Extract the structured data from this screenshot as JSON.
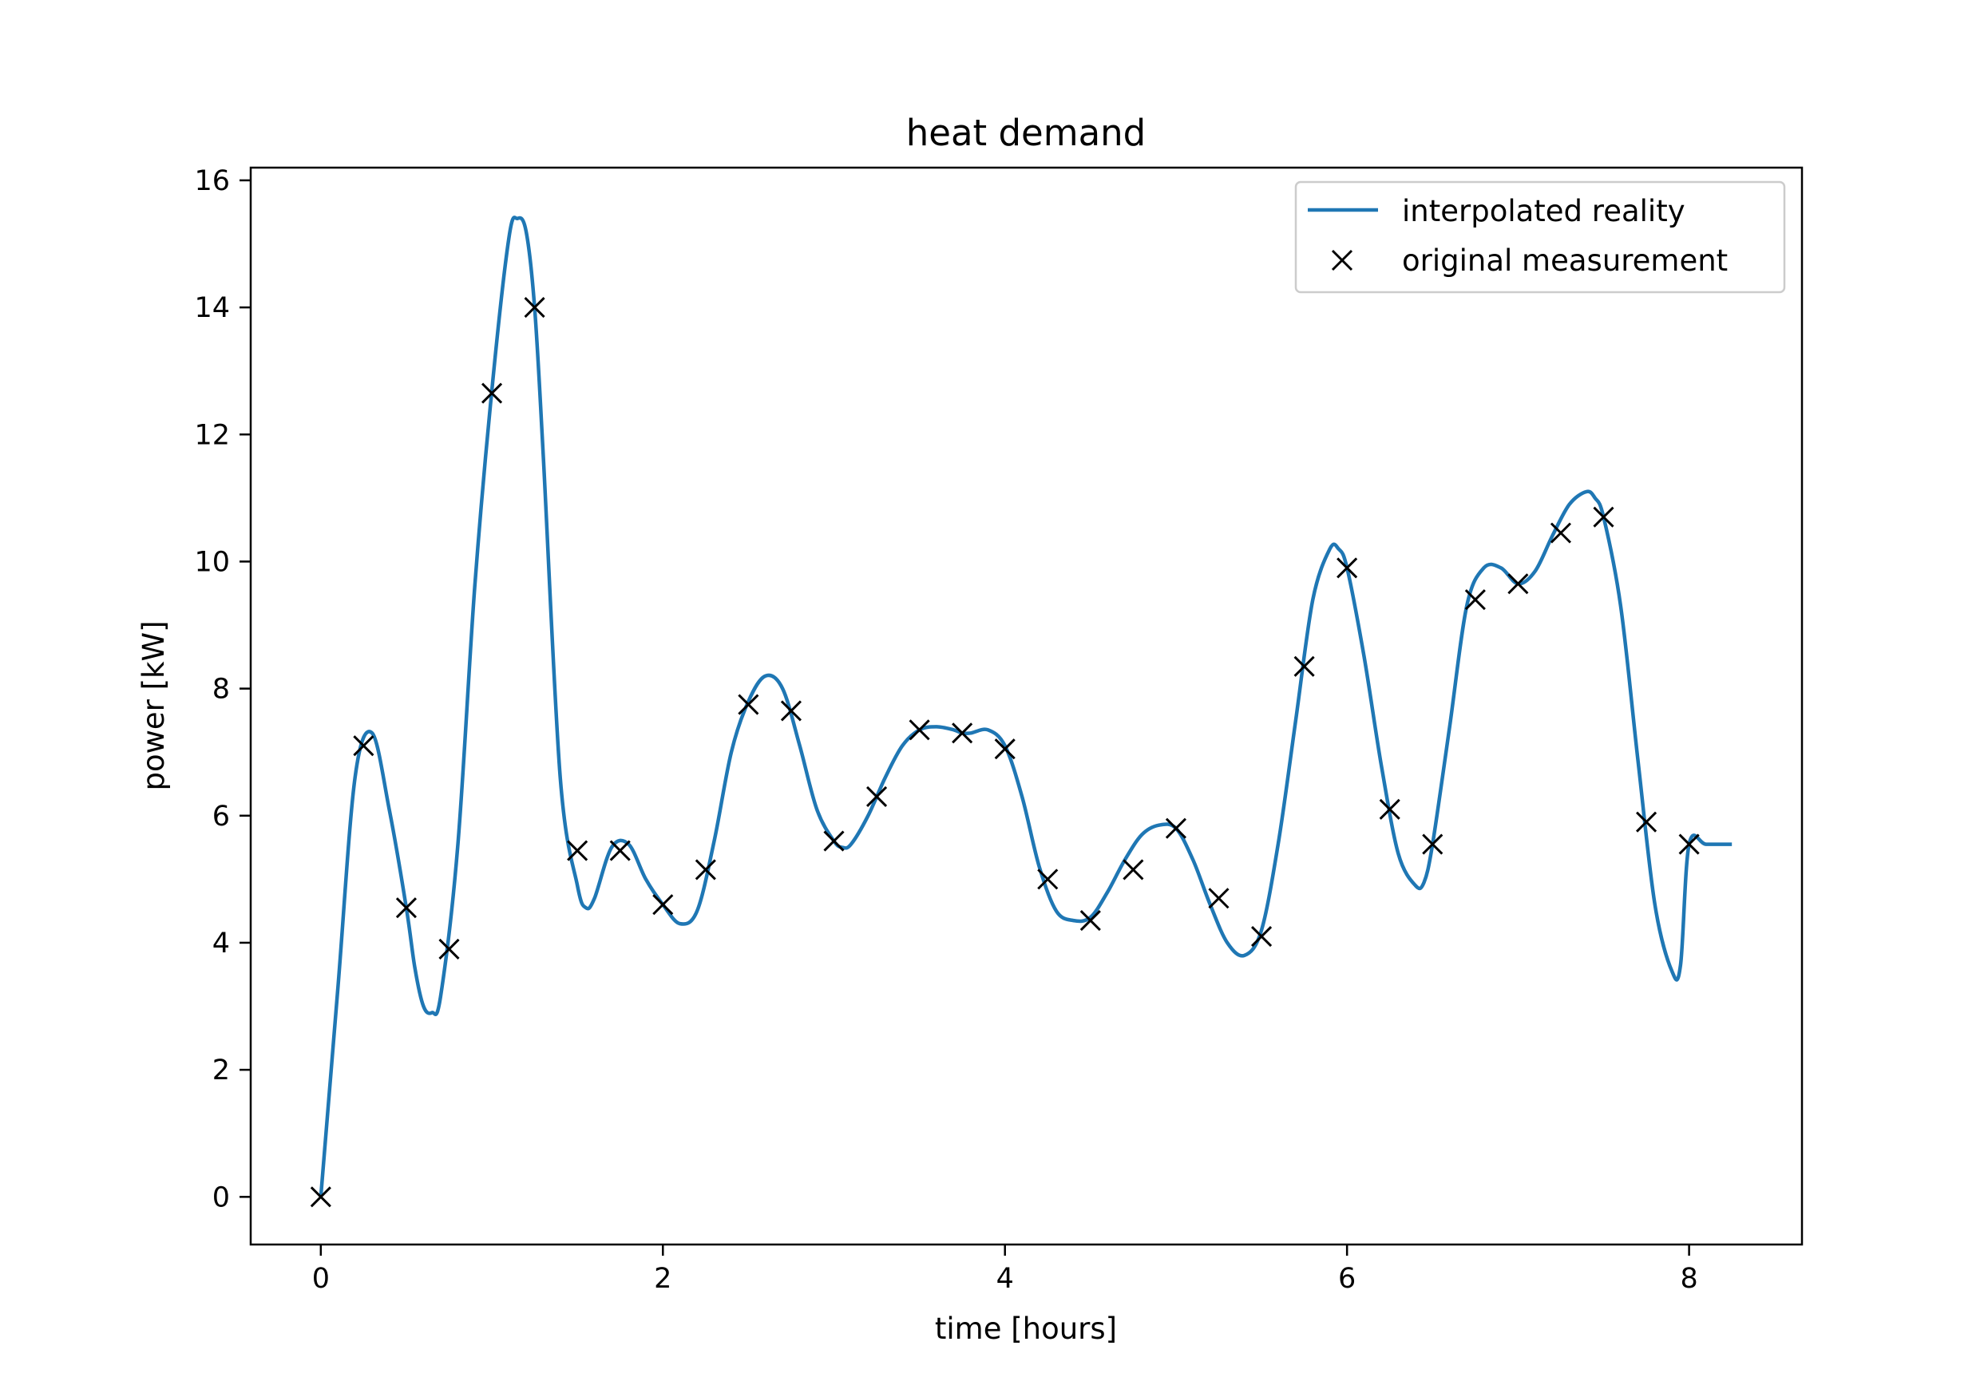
{
  "chart_data": {
    "type": "line",
    "title": "heat demand",
    "xlabel": "time [hours]",
    "ylabel": "power [kW]",
    "xlim": [
      -0.41,
      8.66
    ],
    "ylim": [
      -0.75,
      16.2
    ],
    "xticks": [
      0,
      2,
      4,
      6,
      8
    ],
    "yticks": [
      0,
      2,
      4,
      6,
      8,
      10,
      12,
      14,
      16
    ],
    "x_tick_labels": [
      "0",
      "2",
      "4",
      "6",
      "8"
    ],
    "y_tick_labels": [
      "0",
      "2",
      "4",
      "6",
      "8",
      "10",
      "12",
      "14",
      "16"
    ],
    "grid": false,
    "legend": {
      "position": "top-right",
      "entries": [
        "interpolated reality",
        "original measurement"
      ]
    },
    "colors": {
      "line": "#1f77b4",
      "markers": "#000000"
    },
    "series": [
      {
        "name": "interpolated reality",
        "style": "line",
        "x": [
          0,
          0.1,
          0.2,
          0.3,
          0.4,
          0.5,
          0.55,
          0.6,
          0.65,
          0.7,
          0.8,
          0.9,
          1.0,
          1.1,
          1.15,
          1.2,
          1.25,
          1.3,
          1.4,
          1.5,
          1.55,
          1.6,
          1.7,
          1.8,
          1.9,
          2.0,
          2.1,
          2.2,
          2.3,
          2.4,
          2.5,
          2.6,
          2.7,
          2.8,
          2.9,
          3.0,
          3.05,
          3.1,
          3.2,
          3.3,
          3.4,
          3.5,
          3.6,
          3.7,
          3.75,
          3.8,
          3.9,
          4.0,
          4.1,
          4.2,
          4.3,
          4.4,
          4.5,
          4.6,
          4.7,
          4.8,
          4.9,
          5.0,
          5.1,
          5.2,
          5.3,
          5.4,
          5.5,
          5.6,
          5.7,
          5.8,
          5.9,
          5.95,
          6.0,
          6.1,
          6.2,
          6.3,
          6.4,
          6.45,
          6.5,
          6.6,
          6.7,
          6.8,
          6.9,
          7.0,
          7.1,
          7.2,
          7.3,
          7.4,
          7.45,
          7.5,
          7.6,
          7.7,
          7.8,
          7.9,
          7.95,
          8.0,
          8.1,
          8.25
        ],
        "y": [
          0,
          3.3,
          6.6,
          7.3,
          6.1,
          4.55,
          3.6,
          3.0,
          2.9,
          3.15,
          5.5,
          9.6,
          12.7,
          15.1,
          15.4,
          15.2,
          14.0,
          11.7,
          6.6,
          4.9,
          4.55,
          4.7,
          5.5,
          5.55,
          5.0,
          4.6,
          4.3,
          4.5,
          5.6,
          7.0,
          7.8,
          8.2,
          8.0,
          7.1,
          6.1,
          5.6,
          5.5,
          5.55,
          6.0,
          6.6,
          7.1,
          7.35,
          7.4,
          7.35,
          7.3,
          7.3,
          7.35,
          7.1,
          6.3,
          5.2,
          4.5,
          4.35,
          4.4,
          4.8,
          5.3,
          5.7,
          5.85,
          5.8,
          5.3,
          4.6,
          4.0,
          3.8,
          4.2,
          5.6,
          7.5,
          9.4,
          10.2,
          10.2,
          9.9,
          8.5,
          6.8,
          5.4,
          4.9,
          4.95,
          5.55,
          7.4,
          9.3,
          9.9,
          9.9,
          9.65,
          9.85,
          10.4,
          10.9,
          11.1,
          11.0,
          10.7,
          9.3,
          6.9,
          4.6,
          3.55,
          3.65,
          5.55,
          5.55,
          5.55
        ]
      },
      {
        "name": "original measurement",
        "style": "markers",
        "marker": "x",
        "x": [
          0,
          0.25,
          0.5,
          0.75,
          1.0,
          1.25,
          1.5,
          1.75,
          2.0,
          2.25,
          2.5,
          2.75,
          3.0,
          3.25,
          3.5,
          3.75,
          4.0,
          4.25,
          4.5,
          4.75,
          5.0,
          5.25,
          5.5,
          5.75,
          6.0,
          6.25,
          6.5,
          6.75,
          7.0,
          7.25,
          7.5,
          7.75,
          8.0
        ],
        "y": [
          0,
          7.1,
          4.55,
          3.9,
          12.65,
          14.0,
          5.45,
          5.45,
          4.6,
          5.15,
          7.75,
          7.65,
          5.6,
          6.3,
          7.35,
          7.3,
          7.05,
          5.0,
          4.35,
          5.15,
          5.8,
          4.7,
          4.1,
          8.35,
          9.9,
          6.1,
          5.55,
          9.4,
          9.65,
          10.45,
          10.7,
          5.9,
          5.55
        ]
      }
    ]
  }
}
